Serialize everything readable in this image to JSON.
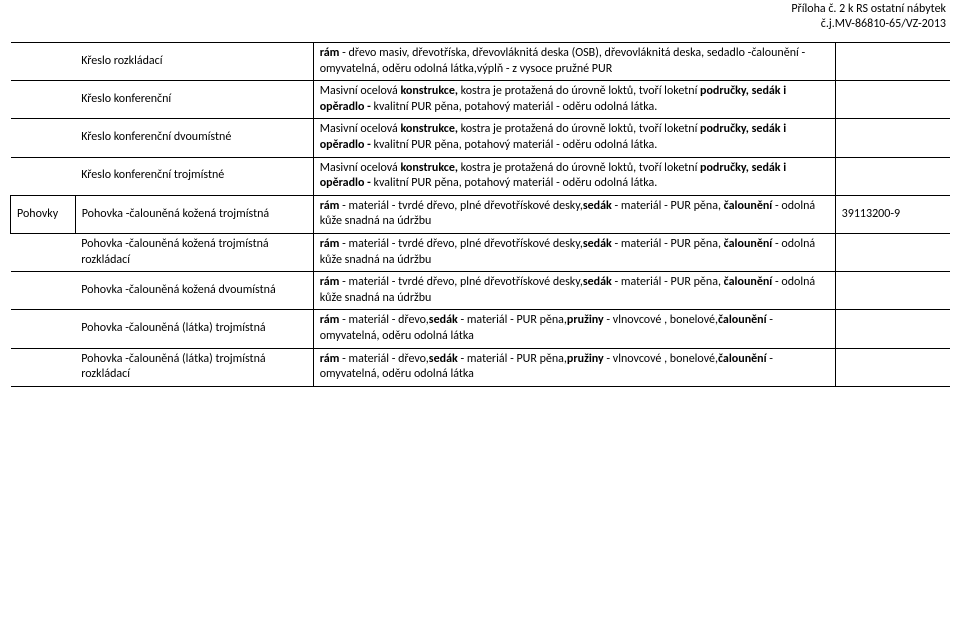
{
  "header": {
    "line1": "Příloha č. 2 k RS ostatní nábytek",
    "line2": "č.j.MV-86810-65/VZ-2013"
  },
  "rows": [
    {
      "a": "",
      "b": "Křeslo rozkládací",
      "c": "<strong>rám</strong> - dřevo masiv, dřevotříska, dřevovláknitá deska (OSB), dřevovláknitá deska, sedadlo -čalounění - omyvatelná, oděru odolná látka,výplň - z vysoce pružné PUR",
      "d": "",
      "leftOpen": true
    },
    {
      "a": "",
      "b": "Křeslo konferenční",
      "c": "Masivní ocelová <strong>konstrukce,</strong> kostra je protažená do úrovně loktů, tvoří loketní <strong>područky, sedák i opěradlo -</strong> kvalitní PUR pěna, potahový materiál - oděru odolná látka.",
      "d": "",
      "leftOpen": true
    },
    {
      "a": "",
      "b": "Křeslo konferenční dvoumístné",
      "c": "Masivní ocelová <strong>konstrukce,</strong> kostra je protažená do úrovně loktů, tvoří loketní <strong>područky, sedák i opěradlo -</strong> kvalitní PUR pěna, potahový materiál - oděru odolná látka.",
      "d": "",
      "leftOpen": true
    },
    {
      "a": "",
      "b": "Křeslo konferenční trojmístné",
      "c": "Masivní ocelová <strong>konstrukce,</strong> kostra je protažená do úrovně loktů, tvoří loketní <strong>područky, sedák i opěradlo -</strong> kvalitní PUR pěna, potahový materiál - oděru odolná látka.",
      "d": "",
      "leftOpen": true
    },
    {
      "a": "Pohovky",
      "b": "Pohovka -čalouněná kožená trojmístná",
      "c": "<strong>rám</strong> - materiál - tvrdé dřevo, plné dřevotřískové desky,<strong>sedák</strong> - materiál - PUR pěna, <strong>čalounění</strong> - odolná kůže snadná na údržbu",
      "d": "39113200-9",
      "leftOpen": false
    },
    {
      "a": "",
      "b": "Pohovka -čalouněná kožená trojmístná rozkládací",
      "c": "<strong>rám</strong> - materiál - tvrdé dřevo, plné dřevotřískové desky,<strong>sedák</strong> - materiál - PUR pěna, <strong>čalounění</strong> - odolná kůže snadná na údržbu",
      "d": "",
      "leftOpen": true
    },
    {
      "a": "",
      "b": "Pohovka -čalouněná kožená dvoumístná",
      "c": "<strong>rám</strong> - materiál - tvrdé dřevo, plné dřevotřískové desky,<strong>sedák</strong> - materiál - PUR pěna, <strong>čalounění</strong> - odolná kůže snadná na údržbu",
      "d": "",
      "leftOpen": true
    },
    {
      "a": "",
      "b": "Pohovka -čalouněná (látka) trojmístná",
      "c": "<strong>rám</strong> - materiál - dřevo,<strong>sedák</strong> - materiál - PUR pěna,<strong>pružiny</strong> - vlnovcové , bonelové,<strong>čalounění</strong> - omyvatelná, oděru odolná látka",
      "d": "",
      "leftOpen": true
    },
    {
      "a": "",
      "b": "Pohovka -čalouněná (látka) trojmístná rozkládací",
      "c": "<strong>rám</strong> - materiál - dřevo,<strong>sedák</strong> - materiál - PUR pěna,<strong>pružiny</strong> - vlnovcové , bonelové,<strong>čalounění</strong> - omyvatelná, oděru odolná látka",
      "d": "",
      "leftOpen": true
    }
  ]
}
